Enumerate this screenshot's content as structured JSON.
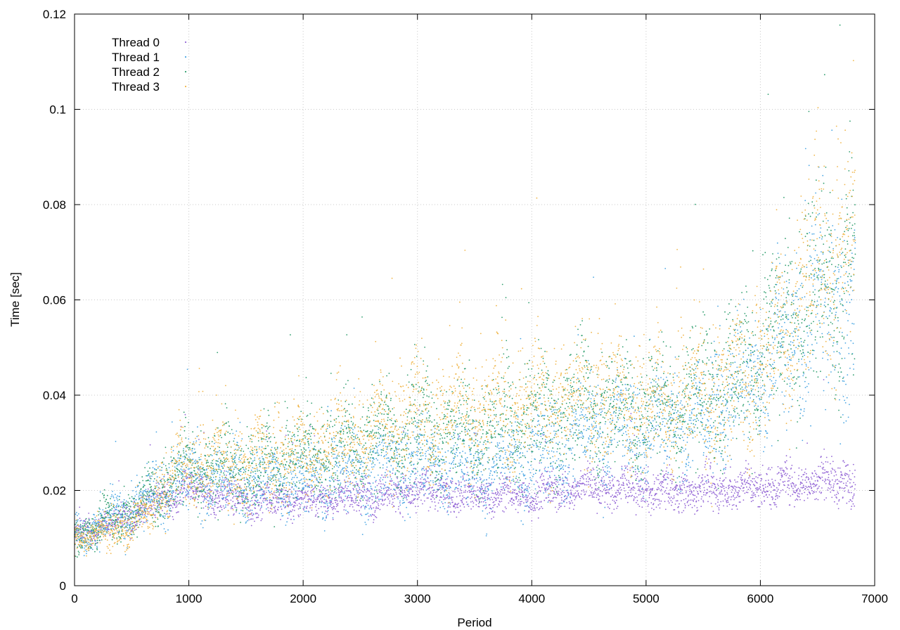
{
  "chart_data": {
    "type": "scatter",
    "title": "",
    "xlabel": "Period",
    "ylabel": "Time [sec]",
    "xlim": [
      0,
      7000
    ],
    "ylim": [
      0,
      0.12
    ],
    "x_ticks": [
      0,
      1000,
      2000,
      3000,
      4000,
      5000,
      6000,
      7000
    ],
    "x_tick_labels": [
      "0",
      "1000",
      "2000",
      "3000",
      "4000",
      "5000",
      "6000",
      "7000"
    ],
    "y_ticks": [
      0,
      0.02,
      0.04,
      0.06,
      0.08,
      0.1,
      0.12
    ],
    "y_tick_labels": [
      "0",
      "0.02",
      "0.04",
      "0.06",
      "0.08",
      "0.1",
      "0.12"
    ],
    "grid": true,
    "legend_position": "top-left",
    "x_max_observed": 6830,
    "series": [
      {
        "name": "Thread 0",
        "color": "#9467d6",
        "trend_x": [
          0,
          200,
          400,
          600,
          800,
          1000,
          1500,
          2000,
          2500,
          3000,
          3500,
          4000,
          4500,
          5000,
          5500,
          6000,
          6500,
          6830
        ],
        "trend_y": [
          0.011,
          0.012,
          0.014,
          0.016,
          0.019,
          0.02,
          0.018,
          0.018,
          0.019,
          0.02,
          0.019,
          0.019,
          0.021,
          0.02,
          0.02,
          0.021,
          0.022,
          0.022
        ]
      },
      {
        "name": "Thread 1",
        "color": "#4aa6e3",
        "trend_x": [
          0,
          200,
          400,
          600,
          800,
          1000,
          1500,
          2000,
          2500,
          3000,
          3500,
          4000,
          4500,
          5000,
          5500,
          6000,
          6500,
          6830
        ],
        "trend_y": [
          0.011,
          0.012,
          0.015,
          0.017,
          0.021,
          0.023,
          0.022,
          0.022,
          0.024,
          0.026,
          0.025,
          0.027,
          0.032,
          0.033,
          0.035,
          0.045,
          0.058,
          0.06
        ]
      },
      {
        "name": "Thread 2",
        "color": "#2f9e6e",
        "trend_x": [
          0,
          200,
          400,
          600,
          800,
          1000,
          1500,
          2000,
          2500,
          3000,
          3500,
          4000,
          4500,
          5000,
          5500,
          6000,
          6500,
          6830
        ],
        "trend_y": [
          0.011,
          0.012,
          0.015,
          0.017,
          0.022,
          0.025,
          0.025,
          0.027,
          0.03,
          0.033,
          0.032,
          0.035,
          0.038,
          0.037,
          0.04,
          0.048,
          0.062,
          0.066
        ]
      },
      {
        "name": "Thread 3",
        "color": "#f0b64a",
        "trend_x": [
          0,
          200,
          400,
          600,
          800,
          1000,
          1500,
          2000,
          2500,
          3000,
          3500,
          4000,
          4500,
          5000,
          5500,
          6000,
          6500,
          6830
        ],
        "trend_y": [
          0.01,
          0.011,
          0.012,
          0.014,
          0.022,
          0.025,
          0.026,
          0.028,
          0.032,
          0.036,
          0.036,
          0.038,
          0.04,
          0.038,
          0.04,
          0.045,
          0.068,
          0.075
        ]
      }
    ]
  }
}
